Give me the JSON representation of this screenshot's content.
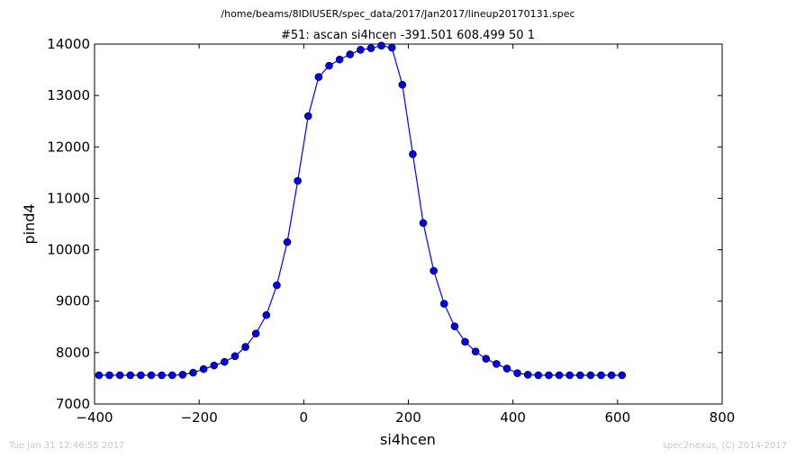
{
  "header": {
    "file_path": "/home/beams/8IDIUSER/spec_data/2017/Jan2017/lineup20170131.spec",
    "scan_title": "#51: ascan  si4hcen -391.501 608.499  50 1"
  },
  "footer": {
    "timestamp": "Tue Jan 31 12:46:55 2017",
    "credit": "spec2nexus, (C) 2014-2017"
  },
  "chart_data": {
    "type": "line",
    "title": "#51: ascan  si4hcen -391.501 608.499  50 1",
    "xlabel": "si4hcen",
    "ylabel": "pind4",
    "xlim": [
      -400,
      800
    ],
    "ylim": [
      7000,
      14000
    ],
    "xticks": [
      -400,
      -200,
      0,
      200,
      400,
      600,
      800
    ],
    "yticks": [
      7000,
      8000,
      9000,
      10000,
      11000,
      12000,
      13000,
      14000
    ],
    "xtick_labels": [
      "−400",
      "−200",
      "0",
      "200",
      "400",
      "600",
      "800"
    ],
    "ytick_labels": [
      "7000",
      "8000",
      "9000",
      "10000",
      "11000",
      "12000",
      "13000",
      "14000"
    ],
    "grid": false,
    "series": [
      {
        "color": "#0000ff",
        "marker": "circle",
        "x": [
          -391.5,
          -371.5,
          -351.5,
          -331.5,
          -311.5,
          -291.5,
          -271.5,
          -251.5,
          -231.5,
          -211.5,
          -191.5,
          -171.5,
          -151.5,
          -131.5,
          -111.5,
          -91.5,
          -71.5,
          -51.5,
          -31.5,
          -11.5,
          8.5,
          28.5,
          48.5,
          68.5,
          88.5,
          108.5,
          128.5,
          148.5,
          168.5,
          188.5,
          208.5,
          228.5,
          248.5,
          268.5,
          288.5,
          308.5,
          328.5,
          348.5,
          368.5,
          388.5,
          408.5,
          428.5,
          448.5,
          468.5,
          488.5,
          508.5,
          528.5,
          548.5,
          568.5,
          588.5,
          608.5
        ],
        "y": [
          7560,
          7560,
          7560,
          7560,
          7560,
          7560,
          7560,
          7560,
          7570,
          7610,
          7680,
          7750,
          7820,
          7930,
          8110,
          8370,
          8730,
          9310,
          10150,
          11340,
          12600,
          13360,
          13580,
          13700,
          13800,
          13890,
          13920,
          13970,
          13930,
          13210,
          11860,
          10520,
          9590,
          8950,
          8510,
          8210,
          8020,
          7880,
          7780,
          7690,
          7600,
          7570,
          7560,
          7560,
          7560,
          7560,
          7560,
          7560,
          7560,
          7560,
          7560
        ]
      }
    ]
  }
}
